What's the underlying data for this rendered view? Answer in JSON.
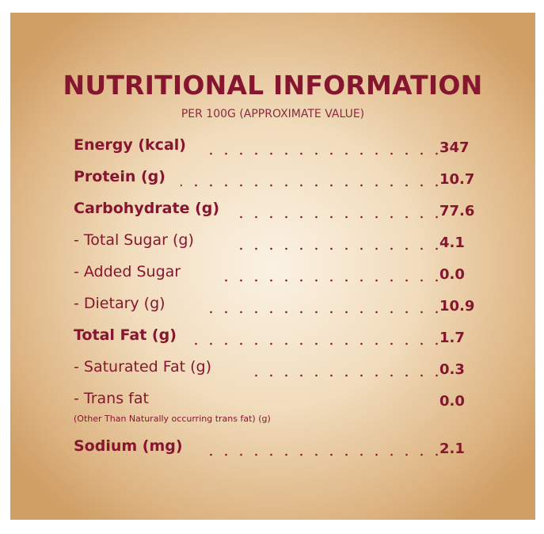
{
  "header": {
    "title": "NUTRITIONAL INFORMATION",
    "subtitle": "PER 100G (APPROXIMATE VALUE)"
  },
  "rows": [
    {
      "label": "Energy (kcal)",
      "value": "347",
      "bold": true
    },
    {
      "label": "Protein (g)",
      "value": "10.7",
      "bold": true
    },
    {
      "label": "Carbohydrate (g)",
      "value": "77.6",
      "bold": true
    },
    {
      "label": "- Total Sugar (g)",
      "value": "4.1",
      "bold": false
    },
    {
      "label": "- Added Sugar",
      "value": "0.0",
      "bold": false
    },
    {
      "label": "- Dietary (g)",
      "value": "10.9",
      "bold": false
    },
    {
      "label": "Total Fat (g)",
      "value": "1.7",
      "bold": true
    },
    {
      "label": "- Saturated Fat (g)",
      "value": "0.3",
      "bold": false
    },
    {
      "label": "- Trans fat",
      "value": "0.0",
      "bold": false
    },
    {
      "label": "Sodium (mg)",
      "value": "2.1",
      "bold": true
    }
  ],
  "trans_fat_note": "(Other Than Naturally occurring trans fat) (g)",
  "colors": {
    "text": "#86162f",
    "panel_center": "#fbf2e4",
    "panel_edge": "#cf9f66"
  }
}
